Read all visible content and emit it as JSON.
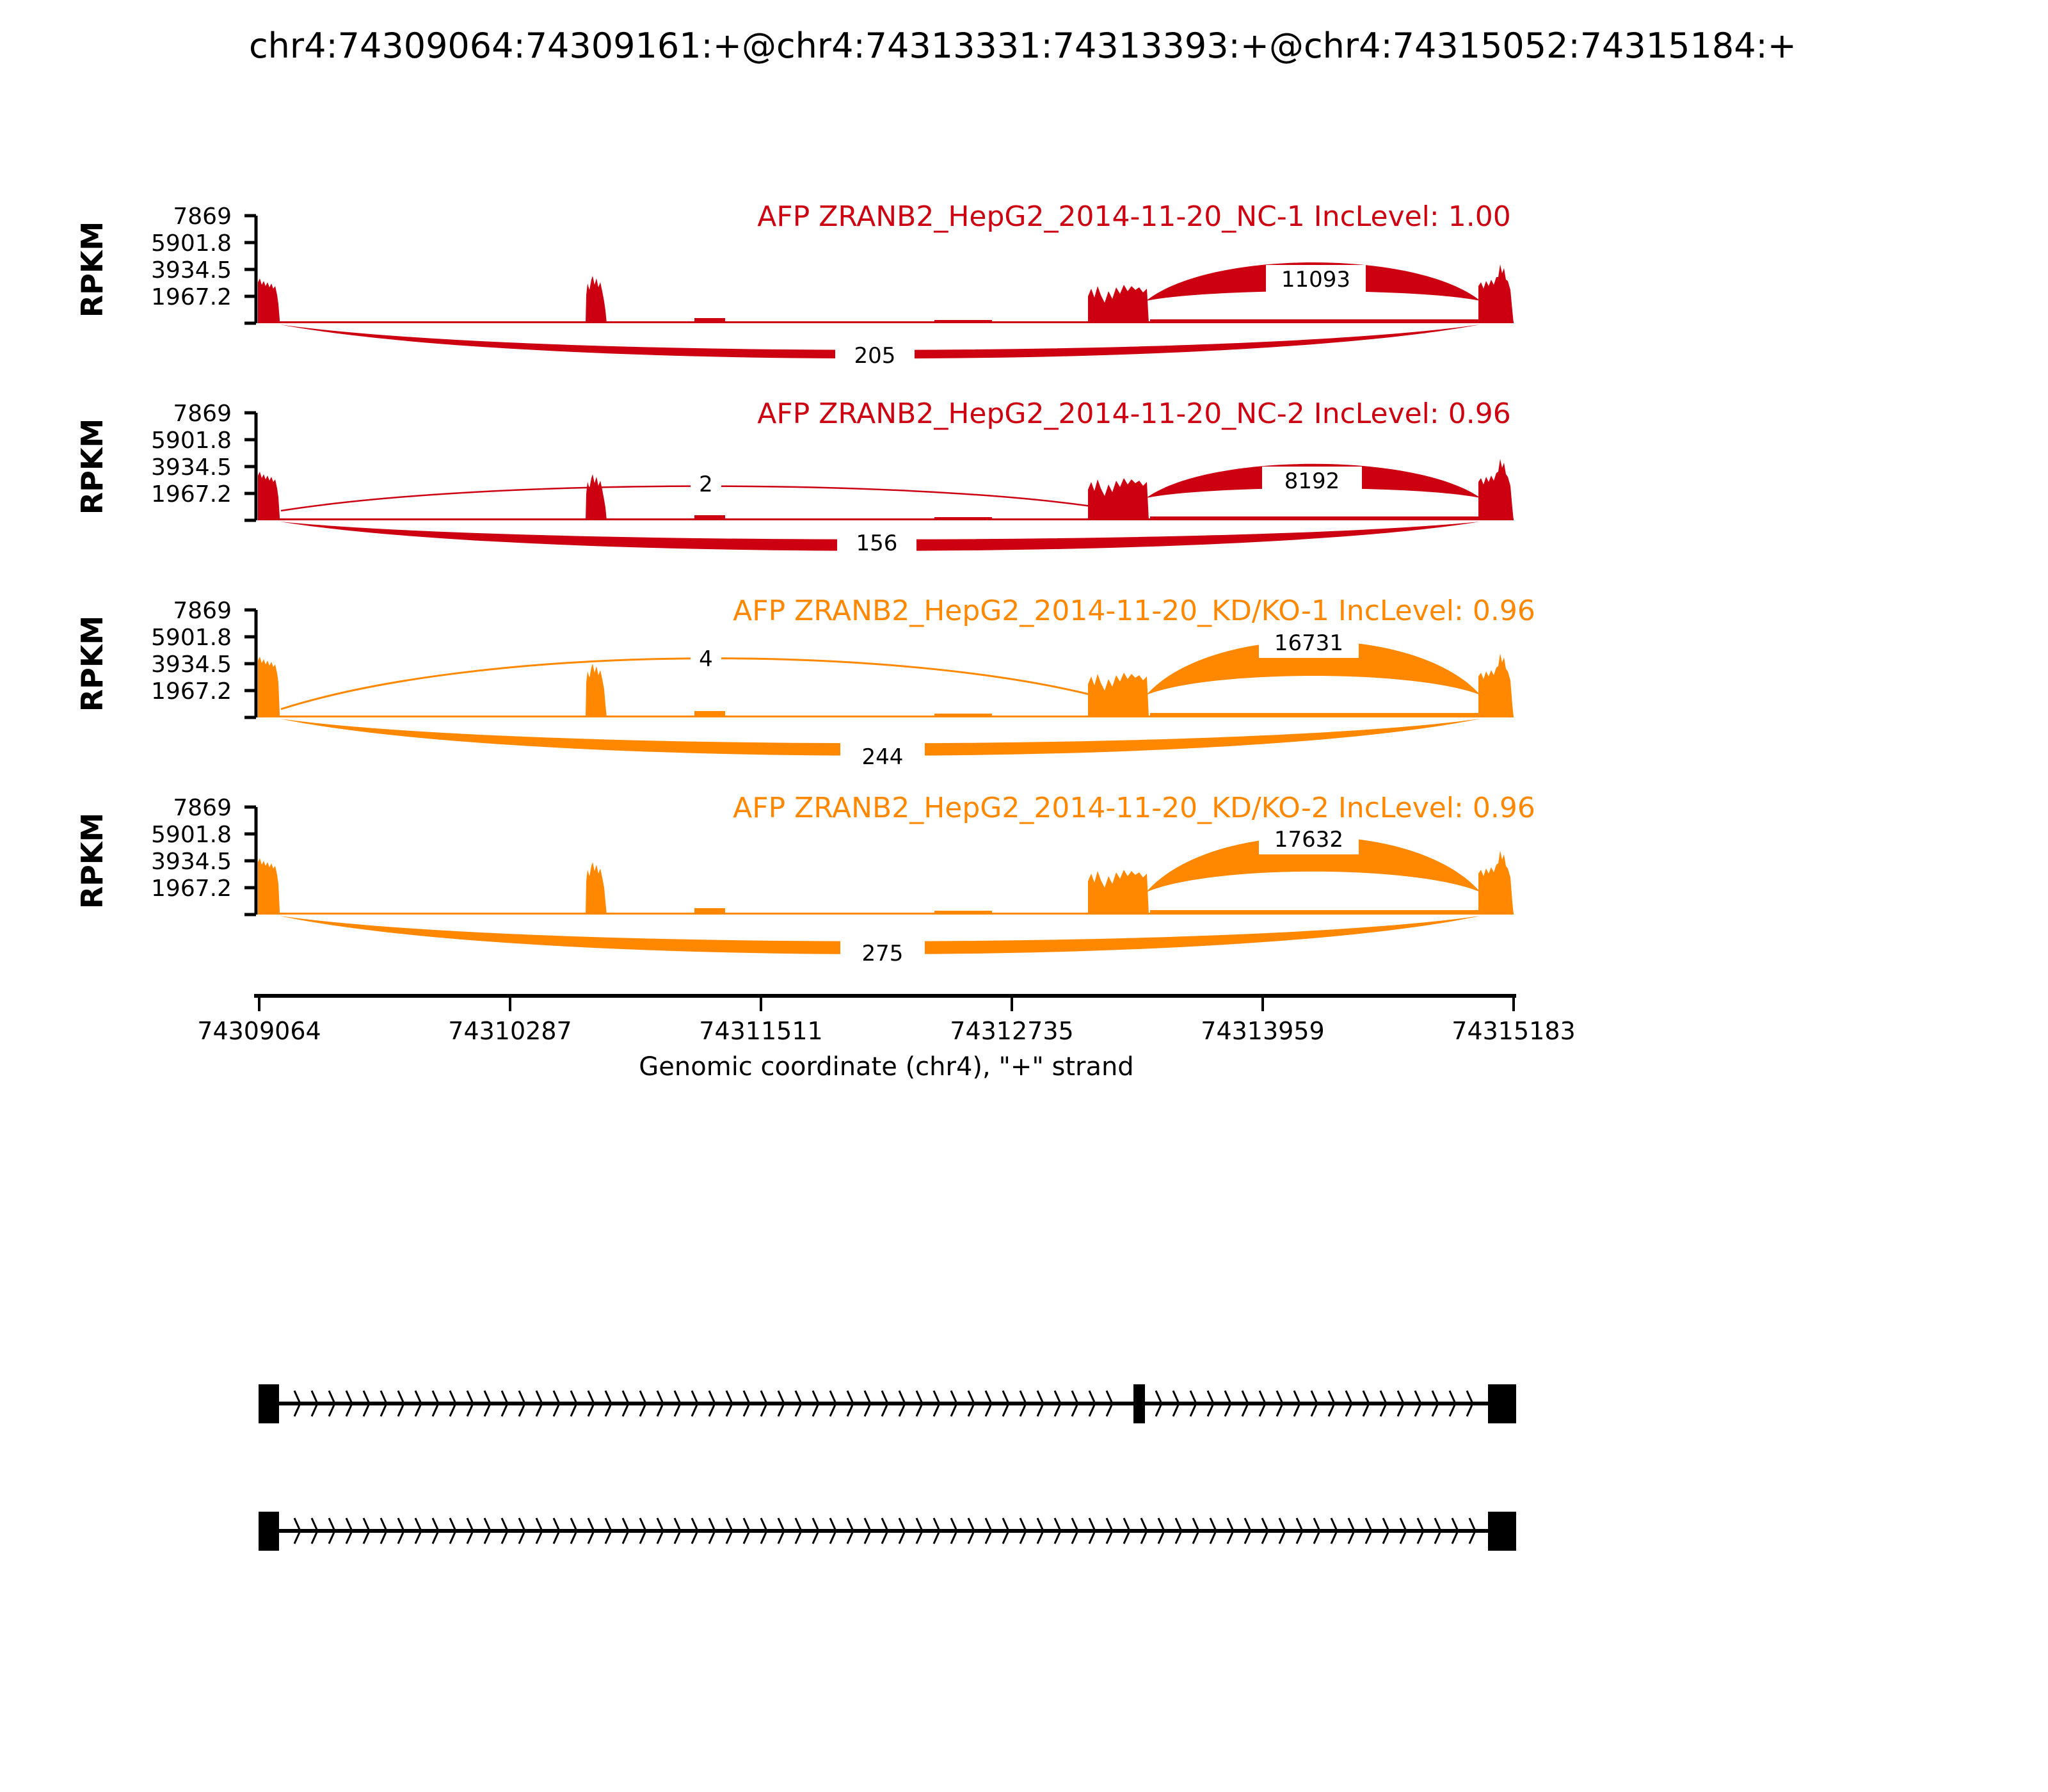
{
  "title": "chr4:74309064:74309161:+@chr4:74313331:74313393:+@chr4:74315052:74315184:+",
  "colors": {
    "sample1_red": "#CC0011",
    "sample2_orange": "#FF8800",
    "text": "#000000",
    "background": "#FFFFFF"
  },
  "chart_data": {
    "type": "sashimi",
    "region": {
      "chrom": "chr4",
      "strand": "+",
      "start": 74309064,
      "end": 74315184
    },
    "event_exons": [
      [
        74309064,
        74309161
      ],
      [
        74313331,
        74313393
      ],
      [
        74315052,
        74315184
      ]
    ],
    "y_axis": {
      "label": "RPKM",
      "ticks": [
        7869,
        5901.8,
        3934.5,
        1967.2
      ],
      "range": [
        0,
        7869
      ]
    },
    "x_axis": {
      "label": "Genomic coordinate (chr4), \"+\" strand",
      "ticks": [
        74309064,
        74310287,
        74311511,
        74312735,
        74313959,
        74315183
      ]
    },
    "tracks": [
      {
        "label": "AFP ZRANB2_HepG2_2014-11-20_NC-1 IncLevel: 1.00",
        "sample": "NC-1",
        "inc_level": "1.00",
        "color": "#CC0011",
        "junctions": [
          {
            "from_exon": 2,
            "to_exon": 3,
            "count": 11093
          },
          {
            "from_exon": 1,
            "to_exon": 3,
            "count": 205
          }
        ]
      },
      {
        "label": "AFP ZRANB2_HepG2_2014-11-20_NC-2 IncLevel: 0.96",
        "sample": "NC-2",
        "inc_level": "0.96",
        "color": "#CC0011",
        "junctions": [
          {
            "from_exon": 1,
            "to_exon": 2,
            "count": 2
          },
          {
            "from_exon": 2,
            "to_exon": 3,
            "count": 8192
          },
          {
            "from_exon": 1,
            "to_exon": 3,
            "count": 156
          }
        ]
      },
      {
        "label": "AFP ZRANB2_HepG2_2014-11-20_KD/KO-1 IncLevel: 0.96",
        "sample": "KD/KO-1",
        "inc_level": "0.96",
        "color": "#FF8800",
        "junctions": [
          {
            "from_exon": 1,
            "to_exon": 2,
            "count": 4
          },
          {
            "from_exon": 2,
            "to_exon": 3,
            "count": 16731
          },
          {
            "from_exon": 1,
            "to_exon": 3,
            "count": 244
          }
        ]
      },
      {
        "label": "AFP ZRANB2_HepG2_2014-11-20_KD/KO-2 IncLevel: 0.96",
        "sample": "KD/KO-2",
        "inc_level": "0.96",
        "color": "#FF8800",
        "junctions": [
          {
            "from_exon": 2,
            "to_exon": 3,
            "count": 17632
          },
          {
            "from_exon": 1,
            "to_exon": 3,
            "count": 275
          }
        ]
      }
    ],
    "isoforms": [
      {
        "exons": [
          [
            74309064,
            74309161
          ],
          [
            74313331,
            74313393
          ],
          [
            74315052,
            74315184
          ]
        ]
      },
      {
        "exons": [
          [
            74309064,
            74309161
          ],
          [
            74315052,
            74315184
          ]
        ]
      }
    ]
  }
}
